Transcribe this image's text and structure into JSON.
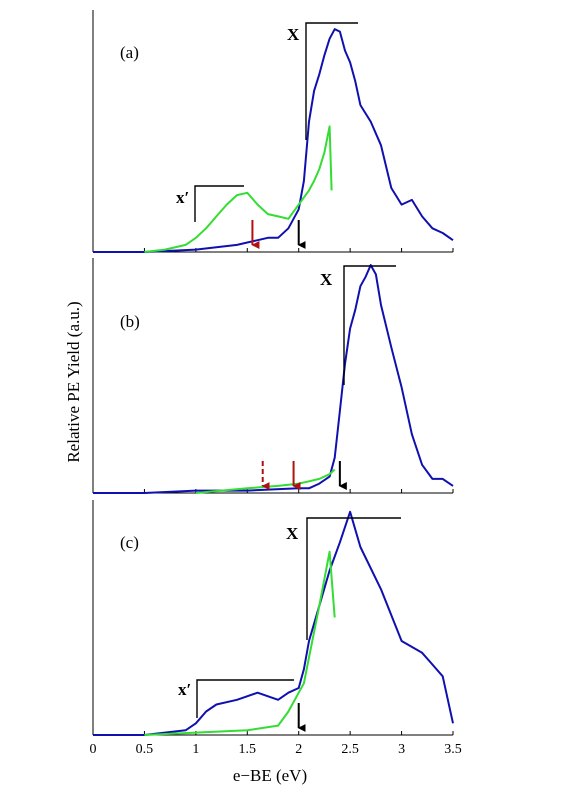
{
  "chart_data": {
    "type": "line",
    "xlabel": "e−BE (eV)",
    "ylabel": "Relative PE Yield (a.u.)",
    "xlim": [
      0,
      3.5
    ],
    "x_ticks": [
      "0",
      "0.5",
      "1",
      "1.5",
      "2",
      "2.5",
      "3",
      "3.5"
    ],
    "panels": [
      {
        "label": "(a)",
        "ylim": [
          0,
          1
        ],
        "series": [
          {
            "color": "#1010b0",
            "x": [
              0,
              0.5,
              1.0,
              1.2,
              1.4,
              1.5,
              1.6,
              1.7,
              1.8,
              1.9,
              2.0,
              2.05,
              2.1,
              2.15,
              2.2,
              2.25,
              2.3,
              2.35,
              2.4,
              2.45,
              2.5,
              2.55,
              2.6,
              2.7,
              2.8,
              2.9,
              3.0,
              3.1,
              3.2,
              3.3,
              3.4,
              3.5
            ],
            "y": [
              0.0,
              0.0,
              0.01,
              0.02,
              0.03,
              0.04,
              0.05,
              0.06,
              0.06,
              0.1,
              0.18,
              0.3,
              0.55,
              0.68,
              0.75,
              0.83,
              0.9,
              0.94,
              0.93,
              0.85,
              0.8,
              0.72,
              0.62,
              0.55,
              0.45,
              0.27,
              0.2,
              0.22,
              0.15,
              0.1,
              0.08,
              0.05
            ]
          },
          {
            "color": "#33dd33",
            "x": [
              0.5,
              0.7,
              0.9,
              1.0,
              1.1,
              1.2,
              1.3,
              1.4,
              1.5,
              1.6,
              1.7,
              1.8,
              1.9,
              2.0,
              2.1,
              2.15,
              2.2,
              2.25,
              2.3,
              2.32
            ],
            "y": [
              0.0,
              0.01,
              0.03,
              0.06,
              0.1,
              0.15,
              0.2,
              0.24,
              0.25,
              0.2,
              0.16,
              0.15,
              0.14,
              0.2,
              0.26,
              0.3,
              0.35,
              0.42,
              0.53,
              0.26
            ]
          }
        ],
        "band_labels": [
          "X",
          "x′"
        ],
        "arrows": [
          {
            "x": 2.0,
            "color": "#000000",
            "style": "solid"
          },
          {
            "x": 1.55,
            "color": "#b01010",
            "style": "solid"
          }
        ]
      },
      {
        "label": "(b)",
        "ylim": [
          0,
          1
        ],
        "series": [
          {
            "color": "#1010b0",
            "x": [
              0,
              0.5,
              1.0,
              1.5,
              2.0,
              2.1,
              2.2,
              2.3,
              2.35,
              2.4,
              2.45,
              2.5,
              2.55,
              2.6,
              2.65,
              2.7,
              2.75,
              2.8,
              2.9,
              3.0,
              3.1,
              3.2,
              3.3,
              3.4,
              3.5
            ],
            "y": [
              0.0,
              0.0,
              0.01,
              0.01,
              0.02,
              0.02,
              0.04,
              0.07,
              0.15,
              0.35,
              0.55,
              0.7,
              0.78,
              0.88,
              0.92,
              0.97,
              0.93,
              0.8,
              0.62,
              0.45,
              0.25,
              0.12,
              0.06,
              0.06,
              0.03
            ]
          },
          {
            "color": "#33dd33",
            "x": [
              1.0,
              1.5,
              1.8,
              2.0,
              2.1,
              2.2,
              2.3,
              2.35
            ],
            "y": [
              0.0,
              0.02,
              0.03,
              0.04,
              0.05,
              0.06,
              0.08,
              0.1
            ]
          }
        ],
        "band_labels": [
          "X"
        ],
        "arrows": [
          {
            "x": 2.4,
            "color": "#000000",
            "style": "solid"
          },
          {
            "x": 1.95,
            "color": "#b01010",
            "style": "solid"
          },
          {
            "x": 1.65,
            "color": "#b01010",
            "style": "dashed"
          }
        ]
      },
      {
        "label": "(c)",
        "ylim": [
          0,
          1
        ],
        "series": [
          {
            "color": "#1010b0",
            "x": [
              0,
              0.5,
              0.9,
              1.0,
              1.1,
              1.2,
              1.4,
              1.6,
              1.8,
              1.9,
              2.0,
              2.05,
              2.1,
              2.2,
              2.3,
              2.4,
              2.5,
              2.6,
              2.8,
              3.0,
              3.2,
              3.3,
              3.4,
              3.5
            ],
            "y": [
              0.0,
              0.0,
              0.02,
              0.05,
              0.1,
              0.13,
              0.15,
              0.18,
              0.15,
              0.18,
              0.2,
              0.28,
              0.4,
              0.55,
              0.7,
              0.82,
              0.95,
              0.8,
              0.62,
              0.4,
              0.35,
              0.3,
              0.25,
              0.05
            ]
          },
          {
            "color": "#33dd33",
            "x": [
              0.5,
              1.0,
              1.5,
              1.8,
              1.9,
              2.0,
              2.05,
              2.1,
              2.2,
              2.3,
              2.35
            ],
            "y": [
              0.0,
              0.01,
              0.02,
              0.04,
              0.1,
              0.18,
              0.22,
              0.33,
              0.55,
              0.78,
              0.5
            ]
          }
        ],
        "band_labels": [
          "X",
          "x′"
        ],
        "arrows": [
          {
            "x": 2.0,
            "color": "#000000",
            "style": "solid"
          }
        ]
      }
    ]
  }
}
